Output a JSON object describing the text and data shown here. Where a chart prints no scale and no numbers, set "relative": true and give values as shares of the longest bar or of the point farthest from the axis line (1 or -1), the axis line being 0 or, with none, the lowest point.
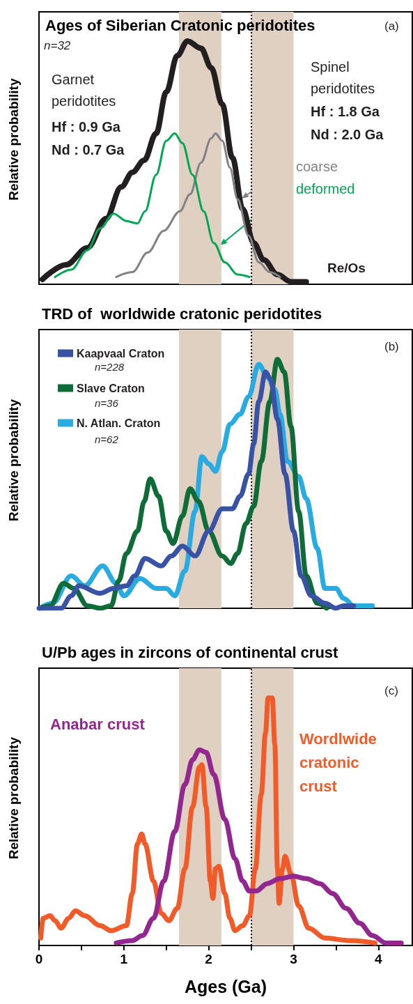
{
  "chart_data": [
    {
      "type": "line",
      "relative": true,
      "title": "Ages of Siberian Cratonic peridotites",
      "ylabel": "Relative probability",
      "xlim": [
        0,
        4.4
      ],
      "tick_labels": false,
      "annotations": [
        "(a)",
        "n=32",
        "Garnet peridotites",
        "Hf : 0.9 Ga",
        "Nd : 0.7 Ga",
        "Spinel peridotites",
        "Hf : 1.8 Ga",
        "Nd : 2.0 Ga",
        "Re/Os"
      ],
      "ref_lines": [
        {
          "axis": "x",
          "value": 2.5,
          "color": "#000000",
          "line_style": "dotted"
        }
      ],
      "bands": [
        {
          "axis": "x",
          "from": 1.65,
          "to": 2.15,
          "color": "#dfd0c2"
        },
        {
          "axis": "x",
          "from": 2.5,
          "to": 3.0,
          "color": "#dfd0c2"
        }
      ],
      "series": [
        {
          "color": "#231f20",
          "x": [
            0.04,
            0.32,
            0.57,
            0.79,
            0.97,
            1.1,
            1.24,
            1.38,
            1.5,
            1.63,
            1.75,
            1.91,
            2.03,
            2.16,
            2.28,
            2.4,
            2.53,
            2.65,
            2.81,
            2.97,
            3.15
          ],
          "values": [
            0.02,
            0.08,
            0.15,
            0.27,
            0.4,
            0.46,
            0.51,
            0.62,
            0.79,
            0.94,
            1,
            0.97,
            0.89,
            0.74,
            0.52,
            0.31,
            0.17,
            0.1,
            0.04,
            0.01,
            0.01
          ]
        },
        {
          "name": "coarse",
          "color": "#808285",
          "x": [
            0.91,
            1.1,
            1.28,
            1.47,
            1.66,
            1.78,
            1.91,
            2.03,
            2.08,
            2.16,
            2.25,
            2.34,
            2.47,
            2.59,
            2.72,
            2.84
          ],
          "values": [
            0.03,
            0.05,
            0.13,
            0.22,
            0.3,
            0.37,
            0.5,
            0.6,
            0.62,
            0.59,
            0.48,
            0.35,
            0.2,
            0.09,
            0.05,
            0.03
          ]
        },
        {
          "name": "deformed",
          "color": "#00a651",
          "x": [
            0.19,
            0.38,
            0.57,
            0.72,
            0.88,
            1.03,
            1.16,
            1.25,
            1.38,
            1.5,
            1.6,
            1.69,
            1.81,
            1.94,
            2.06,
            2.19,
            2.34,
            2.48
          ],
          "values": [
            0.03,
            0.06,
            0.14,
            0.23,
            0.29,
            0.26,
            0.25,
            0.3,
            0.45,
            0.59,
            0.62,
            0.58,
            0.45,
            0.3,
            0.17,
            0.09,
            0.04,
            0.03
          ]
        }
      ]
    },
    {
      "type": "line",
      "relative": true,
      "title": "TRD of  worldwide cratonic peridotites",
      "ylabel": "Relative probability",
      "xlim": [
        0,
        4.4
      ],
      "tick_labels": false,
      "legend": "top left",
      "annotations": [
        "(b)",
        "n=228",
        "n=36",
        "n=62"
      ],
      "ref_lines": [
        {
          "axis": "x",
          "value": 2.5,
          "color": "#000000",
          "line_style": "dotted"
        }
      ],
      "bands": [
        {
          "axis": "x",
          "from": 1.65,
          "to": 2.15,
          "color": "#dfd0c2"
        },
        {
          "axis": "x",
          "from": 2.5,
          "to": 3.0,
          "color": "#dfd0c2"
        }
      ],
      "series": [
        {
          "name": "Kaapvaal Craton",
          "color": "#3953a4",
          "x": [
            0,
            0.26,
            0.38,
            0.47,
            0.72,
            0.88,
            1.03,
            1.13,
            1.25,
            1.44,
            1.56,
            1.69,
            1.84,
            2.0,
            2.16,
            2.28,
            2.37,
            2.47,
            2.53,
            2.59,
            2.67,
            2.73,
            2.81,
            2.9,
            3.0,
            3.09,
            3.21,
            3.37,
            3.5,
            3.59,
            3.71
          ],
          "values": [
            0,
            0,
            0.05,
            0.09,
            0.06,
            0.08,
            0.09,
            0.13,
            0.2,
            0.17,
            0.21,
            0.25,
            0.21,
            0.31,
            0.4,
            0.4,
            0.45,
            0.54,
            0.66,
            0.83,
            0.95,
            0.92,
            0.76,
            0.54,
            0.31,
            0.13,
            0.05,
            0.02,
            0,
            0.01,
            0.01
          ]
        },
        {
          "name": "Slave Craton",
          "color": "#0f6b38",
          "x": [
            0.01,
            0.13,
            0.29,
            0.41,
            0.57,
            0.72,
            0.85,
            0.94,
            1.03,
            1.16,
            1.24,
            1.31,
            1.41,
            1.5,
            1.58,
            1.69,
            1.78,
            1.88,
            2.0,
            2.16,
            2.26,
            2.34,
            2.44,
            2.53,
            2.62,
            2.72,
            2.81,
            2.89,
            2.97,
            3.06,
            3.15,
            3.28,
            3.39
          ],
          "values": [
            0,
            0.01,
            0.1,
            0.08,
            0.01,
            0,
            0.01,
            0.11,
            0.22,
            0.31,
            0.43,
            0.52,
            0.45,
            0.31,
            0.26,
            0.37,
            0.48,
            0.43,
            0.31,
            0.21,
            0.18,
            0.22,
            0.34,
            0.41,
            0.59,
            0.83,
            1,
            0.95,
            0.73,
            0.39,
            0.13,
            0.02,
            0
          ]
        },
        {
          "name": "N. Atlan. Craton",
          "color": "#29abe2",
          "x": [
            0.01,
            0.16,
            0.38,
            0.54,
            0.75,
            0.91,
            1.0,
            1.19,
            1.38,
            1.5,
            1.6,
            1.72,
            1.84,
            1.92,
            2.0,
            2.08,
            2.16,
            2.25,
            2.37,
            2.47,
            2.59,
            2.69,
            2.78,
            2.84,
            2.93,
            3.06,
            3.15,
            3.28,
            3.37,
            3.5,
            3.59,
            3.71,
            3.93
          ],
          "values": [
            0,
            0.02,
            0.13,
            0.09,
            0.17,
            0.1,
            0.05,
            0.12,
            0.08,
            0.08,
            0.05,
            0.15,
            0.39,
            0.61,
            0.58,
            0.55,
            0.63,
            0.74,
            0.78,
            0.85,
            0.98,
            0.93,
            0.88,
            0.78,
            0.59,
            0.53,
            0.44,
            0.24,
            0.08,
            0.08,
            0.04,
            0.01,
            0.01
          ]
        }
      ]
    },
    {
      "type": "line",
      "relative": true,
      "title": "U/Pb ages in zircons of continental crust",
      "xlabel": "Ages (Ga)",
      "ylabel": "Relative probability",
      "xlim": [
        0,
        4.4
      ],
      "tick_labels": "x",
      "xticks": [
        0,
        {
          "value": 0.5,
          "label": null
        },
        1,
        {
          "value": 1.5,
          "label": null
        },
        2,
        {
          "value": 2.5,
          "label": null
        },
        3,
        {
          "value": 3.5,
          "label": null
        },
        4
      ],
      "annotations": [
        "(c)"
      ],
      "ref_lines": [
        {
          "axis": "x",
          "value": 2.5,
          "color": "#000000",
          "line_style": "dotted"
        }
      ],
      "bands": [
        {
          "axis": "x",
          "from": 1.65,
          "to": 2.15,
          "color": "#dfd0c2"
        },
        {
          "axis": "x",
          "from": 2.5,
          "to": 3.0,
          "color": "#dfd0c2"
        }
      ],
      "series": [
        {
          "name": "Anabar crust",
          "color": "#92278f",
          "x": [
            0.91,
            1.1,
            1.22,
            1.35,
            1.47,
            1.6,
            1.72,
            1.81,
            1.89,
            1.97,
            2.06,
            2.19,
            2.31,
            2.4,
            2.48,
            2.56,
            2.69,
            2.84,
            3.0,
            3.15,
            3.31,
            3.46,
            3.62,
            3.78,
            3.93,
            4.09,
            4.27
          ],
          "values": [
            0.01,
            0.02,
            0.04,
            0.11,
            0.26,
            0.46,
            0.65,
            0.75,
            0.79,
            0.78,
            0.69,
            0.51,
            0.35,
            0.26,
            0.22,
            0.22,
            0.25,
            0.27,
            0.28,
            0.27,
            0.25,
            0.21,
            0.15,
            0.09,
            0.04,
            0.01,
            0.01
          ]
        },
        {
          "name": "Wordlwide cratonic crust",
          "color": "#f15a29",
          "x": [
            0.02,
            0.05,
            0.13,
            0.19,
            0.26,
            0.35,
            0.43,
            0.54,
            0.72,
            0.85,
            1.03,
            1.1,
            1.16,
            1.21,
            1.25,
            1.35,
            1.44,
            1.53,
            1.63,
            1.72,
            1.81,
            1.89,
            1.92,
            1.97,
            2.02,
            2.05,
            2.08,
            2.12,
            2.19,
            2.25,
            2.31,
            2.4,
            2.48,
            2.55,
            2.62,
            2.67,
            2.7,
            2.75,
            2.78,
            2.81,
            2.83,
            2.87,
            2.9,
            2.97,
            3.06,
            3.18,
            3.37,
            3.65,
            3.96
          ],
          "values": [
            0.03,
            0.11,
            0.12,
            0.1,
            0.07,
            0.11,
            0.14,
            0.12,
            0.08,
            0.06,
            0.08,
            0.21,
            0.41,
            0.45,
            0.41,
            0.26,
            0.13,
            0.1,
            0.15,
            0.31,
            0.56,
            0.72,
            0.73,
            0.56,
            0.26,
            0.19,
            0.31,
            0.32,
            0.21,
            0.11,
            0.06,
            0.08,
            0.12,
            0.31,
            0.61,
            0.86,
            1,
            1,
            0.81,
            0.31,
            0.17,
            0.31,
            0.36,
            0.29,
            0.16,
            0.07,
            0.03,
            0.02,
            0.01
          ]
        }
      ]
    }
  ]
}
